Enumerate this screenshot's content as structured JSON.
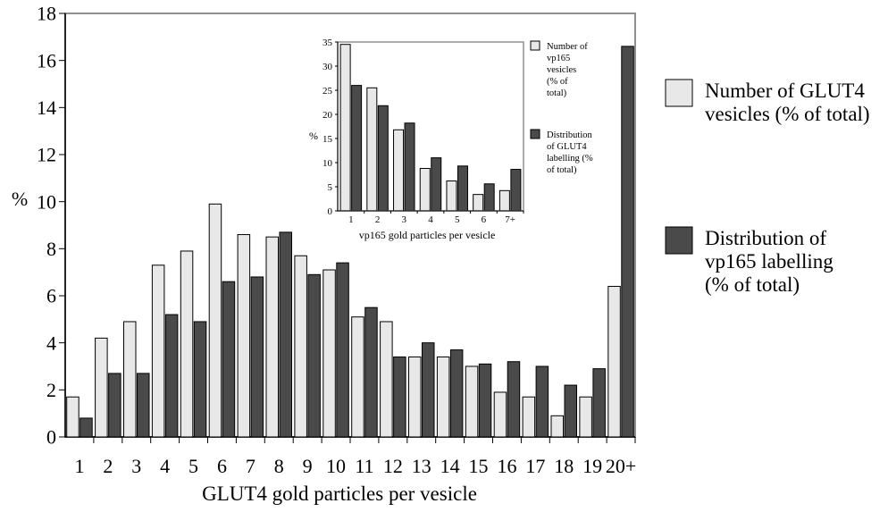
{
  "chart_data": [
    {
      "type": "bar",
      "title": "",
      "xlabel": "GLUT4 gold particles per vesicle",
      "ylabel": "%",
      "ylim": [
        0,
        18
      ],
      "yticks": [
        "0",
        "2",
        "4",
        "6",
        "8",
        "10",
        "12",
        "14",
        "16",
        "18"
      ],
      "categories": [
        "1",
        "2",
        "3",
        "4",
        "5",
        "6",
        "7",
        "8",
        "9",
        "10",
        "11",
        "12",
        "13",
        "14",
        "15",
        "16",
        "17",
        "18",
        "19",
        "20+"
      ],
      "legend_position": "right",
      "series": [
        {
          "name": "Number of GLUT4 vesicles (% of total)",
          "color": "#e8e8e8",
          "values": [
            1.7,
            4.2,
            4.9,
            7.3,
            7.9,
            9.9,
            8.6,
            8.5,
            7.7,
            7.1,
            5.1,
            4.9,
            3.4,
            3.4,
            3.0,
            1.9,
            1.7,
            0.9,
            1.7,
            6.4
          ]
        },
        {
          "name": "Distribution of vp165 labelling (% of total)",
          "color": "#4a4a4a",
          "values": [
            0.8,
            2.7,
            2.7,
            5.2,
            4.9,
            6.6,
            6.8,
            8.7,
            6.9,
            7.4,
            5.5,
            3.4,
            4.0,
            3.7,
            3.1,
            3.2,
            3.0,
            2.2,
            2.9,
            16.6
          ]
        }
      ]
    },
    {
      "type": "bar",
      "title": "",
      "xlabel": "vp165 gold particles per vesicle",
      "ylabel": "%",
      "ylim": [
        0,
        35
      ],
      "yticks": [
        "0",
        "5",
        "10",
        "15",
        "20",
        "25",
        "30",
        "35"
      ],
      "categories": [
        "1",
        "2",
        "3",
        "4",
        "5",
        "6",
        "7+"
      ],
      "legend_position": "right",
      "series": [
        {
          "name": "Number of vp165 vesicles (% of total)",
          "color": "#e8e8e8",
          "values": [
            34.5,
            25.5,
            16.8,
            8.8,
            6.2,
            3.4,
            4.2
          ]
        },
        {
          "name": "Distribution of GLUT4 labelling (% of total)",
          "color": "#4a4a4a",
          "values": [
            26.0,
            21.8,
            18.2,
            11.0,
            9.3,
            5.6,
            8.6
          ]
        }
      ]
    }
  ],
  "legend": {
    "main": [
      {
        "lines": [
          "Number of GLUT4",
          "vesicles (% of total)"
        ],
        "color": "#e8e8e8"
      },
      {
        "lines": [
          "Distribution of",
          "vp165 labelling",
          "(% of total)"
        ],
        "color": "#4a4a4a"
      }
    ],
    "inset": [
      {
        "lines": [
          "Number of",
          "vp165",
          "vesicles",
          "(% of",
          "total)"
        ],
        "color": "#e8e8e8"
      },
      {
        "lines": [
          "Distribution",
          "of GLUT4",
          "labelling (%",
          "of total)"
        ],
        "color": "#4a4a4a"
      }
    ]
  }
}
